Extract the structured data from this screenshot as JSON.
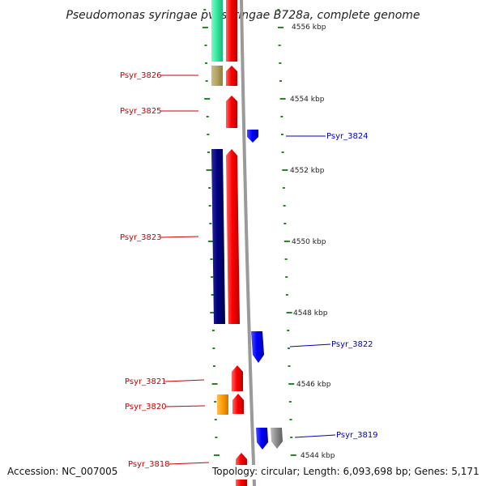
{
  "title": "Pseudomonas syringae pv. syringae B728a, complete genome",
  "footer": {
    "accession": "Accession: NC_007005",
    "topology": "Topology: circular; Length: 6,093,698 bp; Genes: 5,171"
  },
  "colors": {
    "backbone": "#999999",
    "ticks": "#228822",
    "left_label": "#cc0000",
    "right_label": "#0000bb"
  },
  "ticks": [
    {
      "label": "4556 kbp",
      "kbp": 4556
    },
    {
      "label": "4554 kbp",
      "kbp": 4554
    },
    {
      "label": "4552 kbp",
      "kbp": 4552
    },
    {
      "label": "4550 kbp",
      "kbp": 4550
    },
    {
      "label": "4548 kbp",
      "kbp": 4548
    },
    {
      "label": "4546 kbp",
      "kbp": 4546
    },
    {
      "label": "4544 kbp",
      "kbp": 4544
    }
  ],
  "gene_labels_left": [
    {
      "name": "Psyr_3826"
    },
    {
      "name": "Psyr_3825"
    },
    {
      "name": "Psyr_3823"
    },
    {
      "name": "Psyr_3821"
    },
    {
      "name": "Psyr_3820"
    },
    {
      "name": "Psyr_3818"
    }
  ],
  "gene_labels_right": [
    {
      "name": "Psyr_3824"
    },
    {
      "name": "Psyr_3822"
    },
    {
      "name": "Psyr_3819"
    }
  ]
}
